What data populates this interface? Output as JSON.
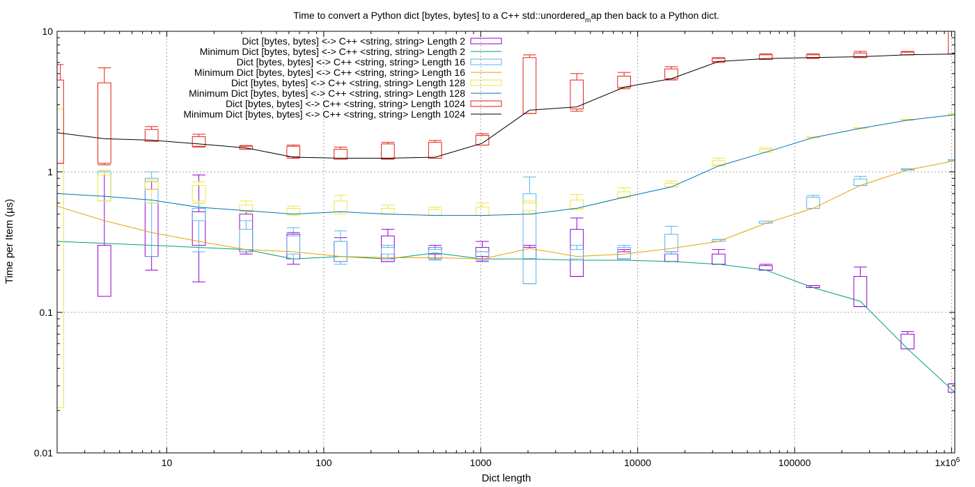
{
  "chart_data": {
    "type": "boxplot_line",
    "title_main": "Time to convert a Python dict [bytes, bytes] to a C++ std::unordered",
    "title_sub": "m",
    "title_tail": "ap then back to a Python dict.",
    "xlabel": "Dict length",
    "ylabel": "Time per Item (µs)",
    "xscale": "log",
    "yscale": "log",
    "xlim": [
      2,
      1048576
    ],
    "ylim": [
      0.01,
      10
    ],
    "grid": true,
    "legend_position": "top-left",
    "x_ticks": [
      {
        "value": 10,
        "label": "10"
      },
      {
        "value": 100,
        "label": "100"
      },
      {
        "value": 1000,
        "label": "1000"
      },
      {
        "value": 10000,
        "label": "10000"
      },
      {
        "value": 100000,
        "label": "100000"
      },
      {
        "value": 1000000,
        "label": "1x10",
        "sup": "6"
      }
    ],
    "y_ticks": [
      {
        "value": 0.01,
        "label": "0.01"
      },
      {
        "value": 0.1,
        "label": "0.1"
      },
      {
        "value": 1,
        "label": "1"
      },
      {
        "value": 10,
        "label": "10"
      }
    ],
    "x": [
      2,
      4,
      8,
      16,
      32,
      64,
      128,
      256,
      512,
      1024,
      2048,
      4096,
      8192,
      16384,
      32768,
      65536,
      131072,
      262144,
      524288,
      1048576
    ],
    "series": [
      {
        "key": "len2",
        "name": "Dict [bytes, bytes] <-> C++ <string, string> Length 2",
        "min_name": "Minimum Dict [bytes, bytes] <-> C++ <string, string> Length 2",
        "color": "#9400d3",
        "min_color": "#009e73",
        "boxes": [
          [
            4,
            0.13,
            0.13,
            0.3,
            1.0
          ],
          [
            8,
            0.2,
            0.25,
            0.75,
            0.85
          ],
          [
            16,
            0.165,
            0.3,
            0.52,
            0.95
          ],
          [
            32,
            0.26,
            0.27,
            0.5,
            0.52
          ],
          [
            64,
            0.22,
            0.24,
            0.36,
            0.37
          ],
          [
            128,
            0.23,
            0.23,
            0.32,
            0.34
          ],
          [
            256,
            0.23,
            0.23,
            0.35,
            0.39
          ],
          [
            512,
            0.24,
            0.26,
            0.29,
            0.3
          ],
          [
            1024,
            0.23,
            0.25,
            0.29,
            0.32
          ],
          [
            2048,
            0.24,
            0.24,
            0.29,
            0.3
          ],
          [
            4096,
            0.18,
            0.18,
            0.39,
            0.47
          ],
          [
            8192,
            0.24,
            0.24,
            0.27,
            0.28
          ],
          [
            16384,
            0.23,
            0.23,
            0.26,
            0.27
          ],
          [
            32768,
            0.22,
            0.22,
            0.26,
            0.28
          ],
          [
            65536,
            0.2,
            0.2,
            0.215,
            0.22
          ],
          [
            131072,
            0.15,
            0.15,
            0.155,
            0.155
          ],
          [
            262144,
            0.11,
            0.11,
            0.18,
            0.21
          ],
          [
            524288,
            0.055,
            0.055,
            0.07,
            0.073
          ],
          [
            1048576,
            0.027,
            0.027,
            0.031,
            0.031
          ]
        ],
        "minimum": [
          0.32,
          0.31,
          0.3,
          0.29,
          0.28,
          0.24,
          0.25,
          0.24,
          0.265,
          0.24,
          0.24,
          0.235,
          0.235,
          0.23,
          0.22,
          0.2,
          0.15,
          0.12,
          0.055,
          0.027
        ]
      },
      {
        "key": "len16",
        "name": "Dict [bytes, bytes] <-> C++ <string, string> Length 16",
        "min_name": "Minimum Dict [bytes, bytes] <-> C++ <string, string> Length 16",
        "color": "#56b4e9",
        "min_color": "#e69f00",
        "boxes": [
          [
            4,
            0.62,
            0.62,
            1.0,
            1.02
          ],
          [
            8,
            0.25,
            0.6,
            0.9,
            1.0
          ],
          [
            16,
            0.27,
            0.45,
            0.55,
            0.6
          ],
          [
            32,
            0.27,
            0.28,
            0.39,
            0.45
          ],
          [
            64,
            0.24,
            0.26,
            0.35,
            0.4
          ],
          [
            128,
            0.22,
            0.23,
            0.32,
            0.38
          ],
          [
            256,
            0.24,
            0.26,
            0.29,
            0.3
          ],
          [
            512,
            0.235,
            0.24,
            0.28,
            0.29
          ],
          [
            1024,
            0.235,
            0.24,
            0.27,
            0.27
          ],
          [
            2048,
            0.16,
            0.16,
            0.7,
            0.92
          ],
          [
            4096,
            0.235,
            0.24,
            0.28,
            0.3
          ],
          [
            8192,
            0.24,
            0.24,
            0.29,
            0.3
          ],
          [
            16384,
            0.26,
            0.27,
            0.36,
            0.41
          ],
          [
            32768,
            0.32,
            0.32,
            0.33,
            0.33
          ],
          [
            65536,
            0.43,
            0.43,
            0.445,
            0.445
          ],
          [
            131072,
            0.55,
            0.55,
            0.66,
            0.68
          ],
          [
            262144,
            0.8,
            0.8,
            0.89,
            0.93
          ],
          [
            524288,
            1.03,
            1.03,
            1.05,
            1.05
          ],
          [
            1048576,
            1.2,
            1.2,
            1.22,
            1.22
          ]
        ],
        "minimum": [
          0.57,
          0.45,
          0.37,
          0.32,
          0.28,
          0.27,
          0.25,
          0.245,
          0.245,
          0.24,
          0.285,
          0.25,
          0.26,
          0.285,
          0.32,
          0.43,
          0.55,
          0.8,
          1.03,
          1.2
        ]
      },
      {
        "key": "len128",
        "name": "Dict [bytes, bytes] <-> C++ <string, string> Length 128",
        "min_name": "Minimum Dict [bytes, bytes] <-> C++ <string, string> Length 128",
        "color": "#f0e442",
        "min_color": "#0072b2",
        "boxes": [
          [
            2,
            0.021,
            0.021,
            2.8,
            2.8
          ],
          [
            4,
            0.62,
            0.62,
            0.95,
            1.02
          ],
          [
            8,
            0.6,
            0.75,
            0.85,
            0.88
          ],
          [
            16,
            0.6,
            0.62,
            0.8,
            0.85
          ],
          [
            32,
            0.52,
            0.53,
            0.58,
            0.62
          ],
          [
            64,
            0.49,
            0.5,
            0.55,
            0.57
          ],
          [
            128,
            0.5,
            0.52,
            0.62,
            0.68
          ],
          [
            256,
            0.5,
            0.5,
            0.55,
            0.58
          ],
          [
            512,
            0.49,
            0.49,
            0.54,
            0.56
          ],
          [
            1024,
            0.49,
            0.49,
            0.56,
            0.6
          ],
          [
            2048,
            0.5,
            0.53,
            0.6,
            0.62
          ],
          [
            4096,
            0.54,
            0.55,
            0.63,
            0.69
          ],
          [
            8192,
            0.65,
            0.66,
            0.72,
            0.77
          ],
          [
            16384,
            0.78,
            0.78,
            0.83,
            0.86
          ],
          [
            32768,
            1.1,
            1.12,
            1.2,
            1.25
          ],
          [
            65536,
            1.38,
            1.38,
            1.45,
            1.48
          ],
          [
            131072,
            1.75,
            1.75,
            1.77,
            1.77
          ],
          [
            262144,
            2.04,
            2.04,
            2.06,
            2.06
          ],
          [
            524288,
            2.33,
            2.33,
            2.36,
            2.36
          ],
          [
            1048576,
            2.55,
            2.55,
            2.6,
            2.6
          ]
        ],
        "minimum": [
          0.7,
          0.67,
          0.63,
          0.56,
          0.53,
          0.5,
          0.52,
          0.5,
          0.49,
          0.49,
          0.5,
          0.55,
          0.66,
          0.78,
          1.1,
          1.38,
          1.75,
          2.04,
          2.33,
          2.55
        ]
      },
      {
        "key": "len1024",
        "name": "Dict [bytes, bytes] <-> C++ <string, string> Length 1024",
        "min_name": "Minimum Dict [bytes, bytes] <-> C++ <string, string> Length 1024",
        "color": "#e51e10",
        "min_color": "#000000",
        "boxes": [
          [
            2,
            1.15,
            1.15,
            4.5,
            5.8
          ],
          [
            4,
            1.12,
            1.15,
            4.3,
            5.5
          ],
          [
            8,
            1.65,
            1.65,
            2.0,
            2.1
          ],
          [
            16,
            1.5,
            1.52,
            1.78,
            1.85
          ],
          [
            32,
            1.45,
            1.45,
            1.52,
            1.54
          ],
          [
            64,
            1.25,
            1.28,
            1.52,
            1.55
          ],
          [
            128,
            1.23,
            1.23,
            1.45,
            1.5
          ],
          [
            256,
            1.23,
            1.24,
            1.58,
            1.62
          ],
          [
            512,
            1.25,
            1.25,
            1.62,
            1.67
          ],
          [
            1024,
            1.55,
            1.55,
            1.82,
            1.87
          ],
          [
            2048,
            2.6,
            2.6,
            6.5,
            6.8
          ],
          [
            4096,
            2.7,
            2.8,
            4.5,
            5.0
          ],
          [
            8192,
            3.9,
            4.0,
            4.8,
            5.1
          ],
          [
            16384,
            4.5,
            4.6,
            5.4,
            5.6
          ],
          [
            32768,
            6.0,
            6.1,
            6.4,
            6.5
          ],
          [
            65536,
            6.3,
            6.3,
            6.8,
            6.9
          ],
          [
            131072,
            6.4,
            6.5,
            6.8,
            6.9
          ],
          [
            262144,
            6.5,
            6.5,
            7.0,
            7.2
          ],
          [
            524288,
            6.8,
            6.8,
            7.1,
            7.2
          ],
          [
            1048576,
            6.9,
            6.9,
            10.0,
            10.0
          ]
        ],
        "minimum": [
          1.9,
          1.72,
          1.68,
          1.58,
          1.48,
          1.27,
          1.25,
          1.25,
          1.27,
          1.6,
          2.75,
          2.9,
          4.0,
          4.6,
          6.1,
          6.4,
          6.5,
          6.6,
          6.8,
          6.9
        ]
      }
    ]
  }
}
